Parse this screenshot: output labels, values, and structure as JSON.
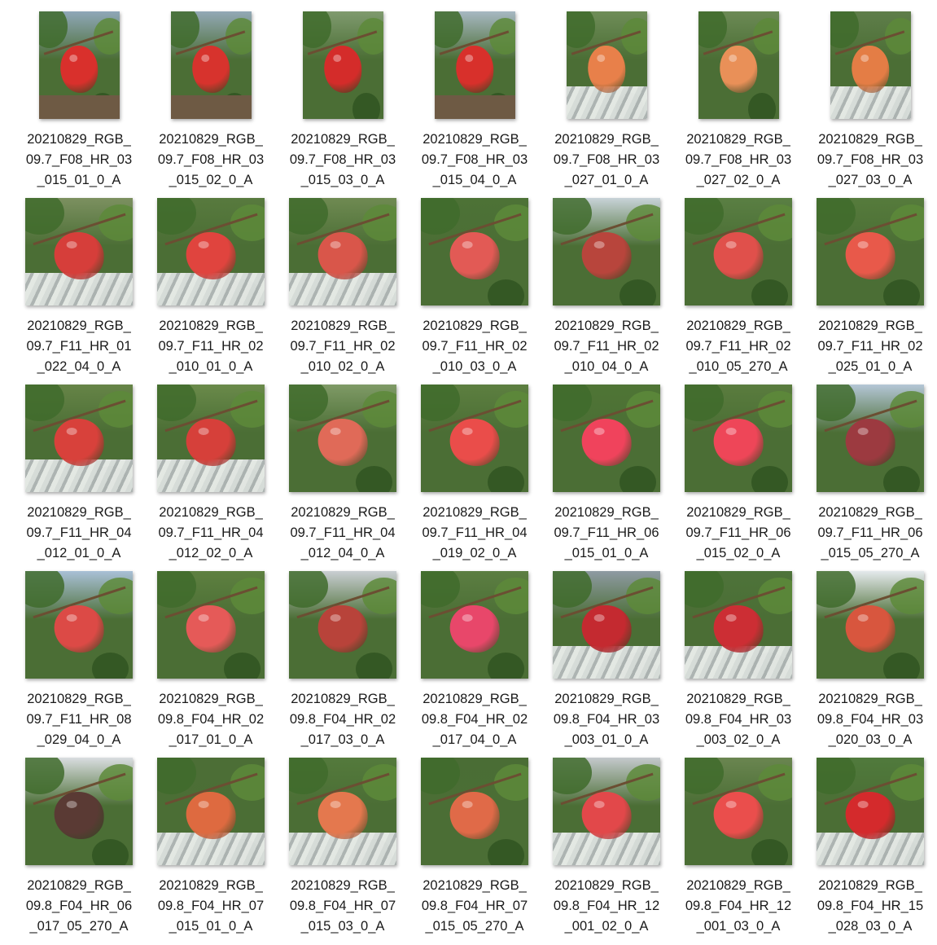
{
  "files": [
    {
      "name": "20210829_RGB_09.7_F08_HR_03_015_01_0_A",
      "lines": [
        "20210829_RGB_",
        "09.7_F08_HR_03",
        "_015_01_0_A"
      ],
      "orientation": "portrait",
      "scene": "ground",
      "sky": "#8fa7b8",
      "fruit": "#d9302c"
    },
    {
      "name": "20210829_RGB_09.7_F08_HR_03_015_02_0_A",
      "lines": [
        "20210829_RGB_",
        "09.7_F08_HR_03",
        "_015_02_0_A"
      ],
      "orientation": "portrait",
      "scene": "ground",
      "sky": "#93a9b6",
      "fruit": "#d7332d"
    },
    {
      "name": "20210829_RGB_09.7_F08_HR_03_015_03_0_A",
      "lines": [
        "20210829_RGB_",
        "09.7_F08_HR_03",
        "_015_03_0_A"
      ],
      "orientation": "portrait",
      "scene": "leaf",
      "sky": "#7f9a6e",
      "fruit": "#d42c2a"
    },
    {
      "name": "20210829_RGB_09.7_F08_HR_03_015_04_0_A",
      "lines": [
        "20210829_RGB_",
        "09.7_F08_HR_03",
        "_015_04_0_A"
      ],
      "orientation": "portrait",
      "scene": "ground",
      "sky": "#a7b8c2",
      "fruit": "#d8302b"
    },
    {
      "name": "20210829_RGB_09.7_F08_HR_03_027_01_0_A",
      "lines": [
        "20210829_RGB_",
        "09.7_F08_HR_03",
        "_027_01_0_A"
      ],
      "orientation": "portrait",
      "scene": "foil",
      "sky": "#6f8d58",
      "fruit": "#e8804a"
    },
    {
      "name": "20210829_RGB_09.7_F08_HR_03_027_02_0_A",
      "lines": [
        "20210829_RGB_",
        "09.7_F08_HR_03",
        "_027_02_0_A"
      ],
      "orientation": "portrait",
      "scene": "leaf",
      "sky": "#6c8a55",
      "fruit": "#e99058"
    },
    {
      "name": "20210829_RGB_09.7_F08_HR_03_027_03_0_A",
      "lines": [
        "20210829_RGB_",
        "09.7_F08_HR_03",
        "_027_03_0_A"
      ],
      "orientation": "portrait",
      "scene": "foil",
      "sky": "#5f7e4a",
      "fruit": "#e47d45"
    },
    {
      "name": "20210829_RGB_09.7_F11_HR_01_022_04_0_A",
      "lines": [
        "20210829_RGB_",
        "09.7_F11_HR_01",
        "_022_04_0_A"
      ],
      "orientation": "square",
      "scene": "foil",
      "sky": "#7c9060",
      "fruit": "#d63e3a"
    },
    {
      "name": "20210829_RGB_09.7_F11_HR_02_010_01_0_A",
      "lines": [
        "20210829_RGB_",
        "09.7_F11_HR_02",
        "_010_01_0_A"
      ],
      "orientation": "square",
      "scene": "foil",
      "sky": "#587a3e",
      "fruit": "#e0443e"
    },
    {
      "name": "20210829_RGB_09.7_F11_HR_02_010_02_0_A",
      "lines": [
        "20210829_RGB_",
        "09.7_F11_HR_02",
        "_010_02_0_A"
      ],
      "orientation": "square",
      "scene": "foil",
      "sky": "#6f8a52",
      "fruit": "#d9564a"
    },
    {
      "name": "20210829_RGB_09.7_F11_HR_02_010_03_0_A",
      "lines": [
        "20210829_RGB_",
        "09.7_F11_HR_02",
        "_010_03_0_A"
      ],
      "orientation": "square",
      "scene": "leaf",
      "sky": "#4d7236",
      "fruit": "#e25a55"
    },
    {
      "name": "20210829_RGB_09.7_F11_HR_02_010_04_0_A",
      "lines": [
        "20210829_RGB_",
        "09.7_F11_HR_02",
        "_010_04_0_A"
      ],
      "orientation": "square",
      "scene": "leaf",
      "sky": "#c8d3d8",
      "fruit": "#b8453c"
    },
    {
      "name": "20210829_RGB_09.7_F11_HR_02_010_05_270_A",
      "lines": [
        "20210829_RGB_",
        "09.7_F11_HR_02",
        "_010_05_270_A"
      ],
      "orientation": "square",
      "scene": "leaf",
      "sky": "#5a7f43",
      "fruit": "#e0504b"
    },
    {
      "name": "20210829_RGB_09.7_F11_HR_02_025_01_0_A",
      "lines": [
        "20210829_RGB_",
        "09.7_F11_HR_02",
        "_025_01_0_A"
      ],
      "orientation": "square",
      "scene": "leaf",
      "sky": "#567b3c",
      "fruit": "#e8594a"
    },
    {
      "name": "20210829_RGB_09.7_F11_HR_04_012_01_0_A",
      "lines": [
        "20210829_RGB_",
        "09.7_F11_HR_04",
        "_012_01_0_A"
      ],
      "orientation": "square",
      "scene": "foil",
      "sky": "#668447",
      "fruit": "#d8413b"
    },
    {
      "name": "20210829_RGB_09.7_F11_HR_04_012_02_0_A",
      "lines": [
        "20210829_RGB_",
        "09.7_F11_HR_04",
        "_012_02_0_A"
      ],
      "orientation": "square",
      "scene": "foil",
      "sky": "#6a8a4a",
      "fruit": "#d6403a"
    },
    {
      "name": "20210829_RGB_09.7_F11_HR_04_012_04_0_A",
      "lines": [
        "20210829_RGB_",
        "09.7_F11_HR_04",
        "_012_04_0_A"
      ],
      "orientation": "square",
      "scene": "leaf",
      "sky": "#7f9a66",
      "fruit": "#e06a58"
    },
    {
      "name": "20210829_RGB_09.7_F11_HR_04_019_02_0_A",
      "lines": [
        "20210829_RGB_",
        "09.7_F11_HR_04",
        "_019_02_0_A"
      ],
      "orientation": "square",
      "scene": "leaf",
      "sky": "#5d7f40",
      "fruit": "#ea4d4a"
    },
    {
      "name": "20210829_RGB_09.7_F11_HR_06_015_01_0_A",
      "lines": [
        "20210829_RGB_",
        "09.7_F11_HR_06",
        "_015_01_0_A"
      ],
      "orientation": "square",
      "scene": "leaf",
      "sky": "#4f7535",
      "fruit": "#f0435c"
    },
    {
      "name": "20210829_RGB_09.7_F11_HR_06_015_02_0_A",
      "lines": [
        "20210829_RGB_",
        "09.7_F11_HR_06",
        "_015_02_0_A"
      ],
      "orientation": "square",
      "scene": "leaf",
      "sky": "#5a7c3e",
      "fruit": "#ee4658"
    },
    {
      "name": "20210829_RGB_09.7_F11_HR_06_015_05_270_A",
      "lines": [
        "20210829_RGB_",
        "09.7_F11_HR_06",
        "_015_05_270_A"
      ],
      "orientation": "square",
      "scene": "leaf",
      "sky": "#b4c6d6",
      "fruit": "#9c3a40"
    },
    {
      "name": "20210829_RGB_09.7_F11_HR_08_029_04_0_A",
      "lines": [
        "20210829_RGB_",
        "09.7_F11_HR_08",
        "_029_04_0_A"
      ],
      "orientation": "square",
      "scene": "leaf",
      "sky": "#a9c0d6",
      "fruit": "#dc4a46"
    },
    {
      "name": "20210829_RGB_09.8_F04_HR_02_017_01_0_A",
      "lines": [
        "20210829_RGB_",
        "09.8_F04_HR_02",
        "_017_01_0_A"
      ],
      "orientation": "square",
      "scene": "leaf",
      "sky": "#5e8040",
      "fruit": "#e55a58"
    },
    {
      "name": "20210829_RGB_09.8_F04_HR_02_017_03_0_A",
      "lines": [
        "20210829_RGB_",
        "09.8_F04_HR_02",
        "_017_03_0_A"
      ],
      "orientation": "square",
      "scene": "leaf",
      "sky": "#c9ced2",
      "fruit": "#b8433a"
    },
    {
      "name": "20210829_RGB_09.8_F04_HR_02_017_04_0_A",
      "lines": [
        "20210829_RGB_",
        "09.8_F04_HR_02",
        "_017_04_0_A"
      ],
      "orientation": "square",
      "scene": "leaf",
      "sky": "#5c7e42",
      "fruit": "#e8476a"
    },
    {
      "name": "20210829_RGB_09.8_F04_HR_03_003_01_0_A",
      "lines": [
        "20210829_RGB_",
        "09.8_F04_HR_03",
        "_003_01_0_A"
      ],
      "orientation": "square",
      "scene": "foil",
      "sky": "#8e9aa2",
      "fruit": "#c42a30"
    },
    {
      "name": "20210829_RGB_09.8_F04_HR_03_003_02_0_A",
      "lines": [
        "20210829_RGB_",
        "09.8_F04_HR_03",
        "_003_02_0_A"
      ],
      "orientation": "square",
      "scene": "foil",
      "sky": "#4e733a",
      "fruit": "#cc2e34"
    },
    {
      "name": "20210829_RGB_09.8_F04_HR_03_020_03_0_A",
      "lines": [
        "20210829_RGB_",
        "09.8_F04_HR_03",
        "_020_03_0_A"
      ],
      "orientation": "square",
      "scene": "leaf",
      "sky": "#e4e9ec",
      "fruit": "#d8563e"
    },
    {
      "name": "20210829_RGB_09.8_F04_HR_06_017_05_270_A",
      "lines": [
        "20210829_RGB_",
        "09.8_F04_HR_06",
        "_017_05_270_A"
      ],
      "orientation": "square",
      "scene": "leaf",
      "sky": "#d9dde0",
      "fruit": "#5a3a34"
    },
    {
      "name": "20210829_RGB_09.8_F04_HR_07_015_01_0_A",
      "lines": [
        "20210829_RGB_",
        "09.8_F04_HR_07",
        "_015_01_0_A"
      ],
      "orientation": "square",
      "scene": "foil",
      "sky": "#4c6e36",
      "fruit": "#de6a40"
    },
    {
      "name": "20210829_RGB_09.8_F04_HR_07_015_03_0_A",
      "lines": [
        "20210829_RGB_",
        "09.8_F04_HR_07",
        "_015_03_0_A"
      ],
      "orientation": "square",
      "scene": "foil",
      "sky": "#547a3c",
      "fruit": "#e4784e"
    },
    {
      "name": "20210829_RGB_09.8_F04_HR_07_015_05_270_A",
      "lines": [
        "20210829_RGB_",
        "09.8_F04_HR_07",
        "_015_05_270_A"
      ],
      "orientation": "square",
      "scene": "leaf",
      "sky": "#4a6d35",
      "fruit": "#e06a48"
    },
    {
      "name": "20210829_RGB_09.8_F04_HR_12_001_02_0_A",
      "lines": [
        "20210829_RGB_",
        "09.8_F04_HR_12",
        "_001_02_0_A"
      ],
      "orientation": "square",
      "scene": "foil",
      "sky": "#c4c9cc",
      "fruit": "#e2484a"
    },
    {
      "name": "20210829_RGB_09.8_F04_HR_12_001_03_0_A",
      "lines": [
        "20210829_RGB_",
        "09.8_F04_HR_12",
        "_001_03_0_A"
      ],
      "orientation": "square",
      "scene": "leaf",
      "sky": "#6a8550",
      "fruit": "#ea4e4c"
    },
    {
      "name": "20210829_RGB_09.8_F04_HR_15_028_03_0_A",
      "lines": [
        "20210829_RGB_",
        "09.8_F04_HR_15",
        "_028_03_0_A"
      ],
      "orientation": "square",
      "scene": "foil",
      "sky": "#507a3c",
      "fruit": "#d42a2c"
    }
  ]
}
